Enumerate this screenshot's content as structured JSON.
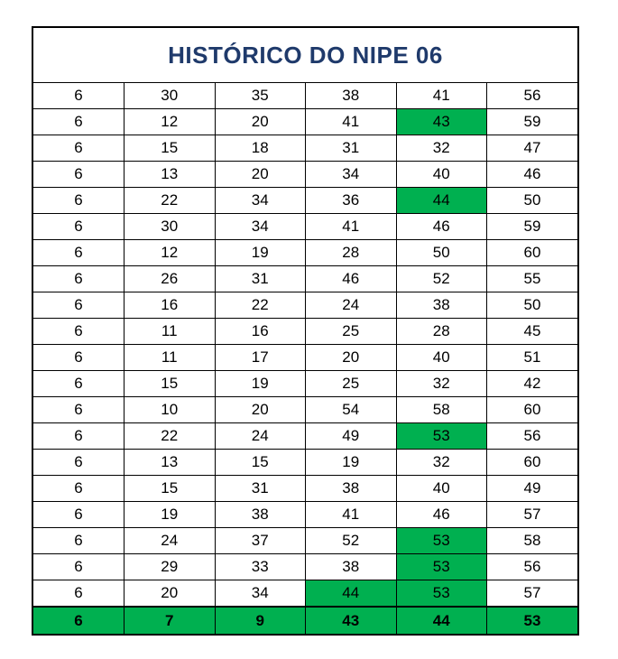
{
  "sheet": {
    "title": "HISTÓRICO DO NIPE 06",
    "highlight_color": "#00b050",
    "title_color": "#1f3a6b",
    "rows": [
      [
        6,
        30,
        35,
        38,
        41,
        56
      ],
      [
        6,
        12,
        20,
        41,
        43,
        59
      ],
      [
        6,
        15,
        18,
        31,
        32,
        47
      ],
      [
        6,
        13,
        20,
        34,
        40,
        46
      ],
      [
        6,
        22,
        34,
        36,
        44,
        50
      ],
      [
        6,
        30,
        34,
        41,
        46,
        59
      ],
      [
        6,
        12,
        19,
        28,
        50,
        60
      ],
      [
        6,
        26,
        31,
        46,
        52,
        55
      ],
      [
        6,
        16,
        22,
        24,
        38,
        50
      ],
      [
        6,
        11,
        16,
        25,
        28,
        45
      ],
      [
        6,
        11,
        17,
        20,
        40,
        51
      ],
      [
        6,
        15,
        19,
        25,
        32,
        42
      ],
      [
        6,
        10,
        20,
        54,
        58,
        60
      ],
      [
        6,
        22,
        24,
        49,
        53,
        56
      ],
      [
        6,
        13,
        15,
        19,
        32,
        60
      ],
      [
        6,
        15,
        31,
        38,
        40,
        49
      ],
      [
        6,
        19,
        38,
        41,
        46,
        57
      ],
      [
        6,
        24,
        37,
        52,
        53,
        58
      ],
      [
        6,
        29,
        33,
        38,
        53,
        56
      ],
      [
        6,
        20,
        34,
        44,
        53,
        57
      ]
    ],
    "highlighted_cells": [
      [
        1,
        4
      ],
      [
        4,
        4
      ],
      [
        13,
        4
      ],
      [
        17,
        4
      ],
      [
        18,
        4
      ],
      [
        19,
        3
      ],
      [
        19,
        4
      ]
    ],
    "total_row": [
      6,
      7,
      9,
      43,
      44,
      53
    ]
  }
}
